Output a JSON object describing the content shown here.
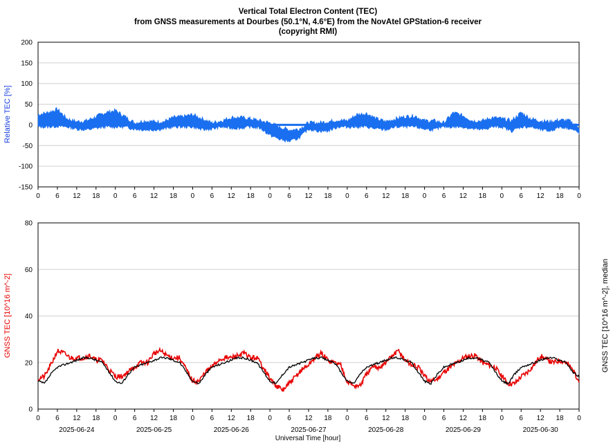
{
  "title": {
    "line1": "Vertical Total Electron Content (TEC)",
    "line2": "from GNSS measurements at Dourbes (50.1°N, 4.6°E) from the NovAtel GPStation-6 receiver",
    "line3": "(copyright RMI)"
  },
  "colors": {
    "relative": "#1a6ff0",
    "gnss": "#e80000",
    "median": "#000000",
    "grid": "#d0d0d0"
  },
  "chart_data": [
    {
      "type": "area",
      "ylabel": "Relative TEC [%]",
      "ylim": [
        -150,
        200
      ],
      "yticks": [
        200,
        150,
        100,
        50,
        0,
        -50,
        -100,
        -150
      ],
      "grid": true,
      "xticks_hours": [
        "0",
        "6",
        "12",
        "18",
        "0",
        "6",
        "12",
        "18",
        "0",
        "6",
        "12",
        "18",
        "0",
        "6",
        "12",
        "18",
        "0",
        "6",
        "12",
        "18",
        "0",
        "6",
        "12",
        "18",
        "0",
        "6",
        "12",
        "18",
        "0"
      ],
      "series": [
        {
          "hours": [
            0,
            3,
            6,
            9,
            12,
            15,
            18,
            21,
            24,
            27,
            30,
            33,
            36,
            39,
            42,
            45,
            48,
            51,
            54,
            57,
            60,
            63,
            66,
            69,
            72,
            75,
            78,
            81,
            84,
            87,
            90,
            93,
            96,
            99,
            102,
            105,
            108,
            111,
            114,
            117,
            120,
            123,
            126,
            129,
            132,
            135,
            138,
            141,
            144,
            147,
            150,
            153,
            156,
            159,
            162,
            165,
            168
          ],
          "upper": [
            25,
            30,
            38,
            15,
            8,
            10,
            20,
            30,
            35,
            20,
            5,
            10,
            8,
            8,
            18,
            20,
            25,
            15,
            5,
            10,
            18,
            18,
            15,
            10,
            5,
            -5,
            -12,
            -10,
            5,
            5,
            8,
            12,
            10,
            25,
            28,
            15,
            8,
            15,
            20,
            22,
            10,
            10,
            5,
            30,
            22,
            10,
            10,
            18,
            15,
            10,
            30,
            15,
            10,
            8,
            12,
            10,
            -5
          ],
          "lower": [
            -5,
            -5,
            -3,
            -5,
            -10,
            -12,
            -8,
            -5,
            -5,
            -5,
            -10,
            -12,
            -12,
            -10,
            -5,
            -5,
            -5,
            -12,
            -10,
            -5,
            -8,
            -8,
            -5,
            -8,
            -25,
            -35,
            -40,
            -32,
            -10,
            -15,
            -15,
            -5,
            -5,
            -5,
            -5,
            -10,
            -12,
            -5,
            -5,
            -5,
            -10,
            -12,
            -5,
            -5,
            -5,
            -10,
            -12,
            -5,
            -5,
            -15,
            -5,
            -5,
            -12,
            -15,
            -5,
            -8,
            -20
          ]
        }
      ]
    },
    {
      "type": "line",
      "ylabel": "GNSS TEC [10^16 m^-2]",
      "ylabel_right": "GNSS TEC [10^16 m^-2], median",
      "xlabel": "Universal Time [hour]",
      "ylim": [
        0,
        80
      ],
      "yticks": [
        80,
        60,
        40,
        20,
        0
      ],
      "grid": true,
      "xticks_hours": [
        "0",
        "6",
        "12",
        "18",
        "0",
        "6",
        "12",
        "18",
        "0",
        "6",
        "12",
        "18",
        "0",
        "6",
        "12",
        "18",
        "0",
        "6",
        "12",
        "18",
        "0",
        "6",
        "12",
        "18",
        "0",
        "6",
        "12",
        "18",
        "0"
      ],
      "date_labels": [
        "2025-06-24",
        "2025-06-25",
        "2025-06-26",
        "2025-06-27",
        "2025-06-28",
        "2025-06-29",
        "2025-06-30"
      ],
      "series": [
        {
          "name": "GNSS TEC",
          "hours": [
            0,
            2,
            4,
            6,
            8,
            10,
            12,
            14,
            16,
            18,
            20,
            22,
            24,
            26,
            28,
            30,
            32,
            34,
            36,
            38,
            40,
            42,
            44,
            46,
            48,
            50,
            52,
            54,
            56,
            58,
            60,
            62,
            64,
            66,
            68,
            70,
            72,
            74,
            76,
            78,
            80,
            82,
            84,
            86,
            88,
            90,
            92,
            94,
            96,
            98,
            100,
            102,
            104,
            106,
            108,
            110,
            112,
            114,
            116,
            118,
            120,
            122,
            124,
            126,
            128,
            130,
            132,
            134,
            136,
            138,
            140,
            142,
            144,
            146,
            148,
            150,
            152,
            154,
            156,
            158,
            160,
            162,
            164,
            166,
            168
          ],
          "values": [
            13,
            14,
            19,
            25,
            24,
            22,
            22,
            22,
            23,
            21,
            21,
            17,
            14,
            14,
            16,
            18,
            20,
            20,
            24,
            25,
            23,
            22,
            22,
            17,
            12,
            12,
            16,
            18,
            21,
            22,
            22,
            23,
            24,
            22,
            22,
            18,
            13,
            10,
            8,
            11,
            14,
            17,
            19,
            22,
            24,
            21,
            20,
            19,
            12,
            10,
            10,
            15,
            18,
            18,
            20,
            23,
            25,
            21,
            19,
            18,
            14,
            12,
            13,
            16,
            18,
            20,
            22,
            23,
            23,
            20,
            19,
            18,
            14,
            11,
            11,
            14,
            16,
            19,
            23,
            21,
            20,
            21,
            20,
            17,
            12
          ]
        },
        {
          "name": "median",
          "hours": [
            0,
            2,
            4,
            6,
            8,
            10,
            12,
            14,
            16,
            18,
            20,
            22,
            24,
            26,
            28,
            30,
            32,
            34,
            36,
            38,
            40,
            42,
            44,
            46,
            48,
            50,
            52,
            54,
            56,
            58,
            60,
            62,
            64,
            66,
            68,
            70,
            72,
            74,
            76,
            78,
            80,
            82,
            84,
            86,
            88,
            90,
            92,
            94,
            96,
            98,
            100,
            102,
            104,
            106,
            108,
            110,
            112,
            114,
            116,
            118,
            120,
            122,
            124,
            126,
            128,
            130,
            132,
            134,
            136,
            138,
            140,
            142,
            144,
            146,
            148,
            150,
            152,
            154,
            156,
            158,
            160,
            162,
            164,
            166,
            168
          ],
          "values": [
            12,
            11,
            15,
            18,
            19,
            20,
            21,
            22,
            22,
            21,
            20,
            16,
            12,
            11,
            15,
            18,
            19,
            20,
            21,
            22,
            22,
            21,
            20,
            16,
            12,
            11,
            15,
            18,
            19,
            20,
            21,
            22,
            22,
            21,
            20,
            16,
            12,
            11,
            15,
            18,
            19,
            20,
            21,
            22,
            22,
            21,
            20,
            16,
            12,
            11,
            15,
            18,
            19,
            20,
            21,
            22,
            22,
            21,
            20,
            16,
            12,
            11,
            15,
            18,
            19,
            20,
            21,
            22,
            22,
            21,
            20,
            16,
            12,
            11,
            15,
            18,
            19,
            20,
            21,
            22,
            22,
            21,
            20,
            16,
            14
          ]
        }
      ]
    }
  ]
}
